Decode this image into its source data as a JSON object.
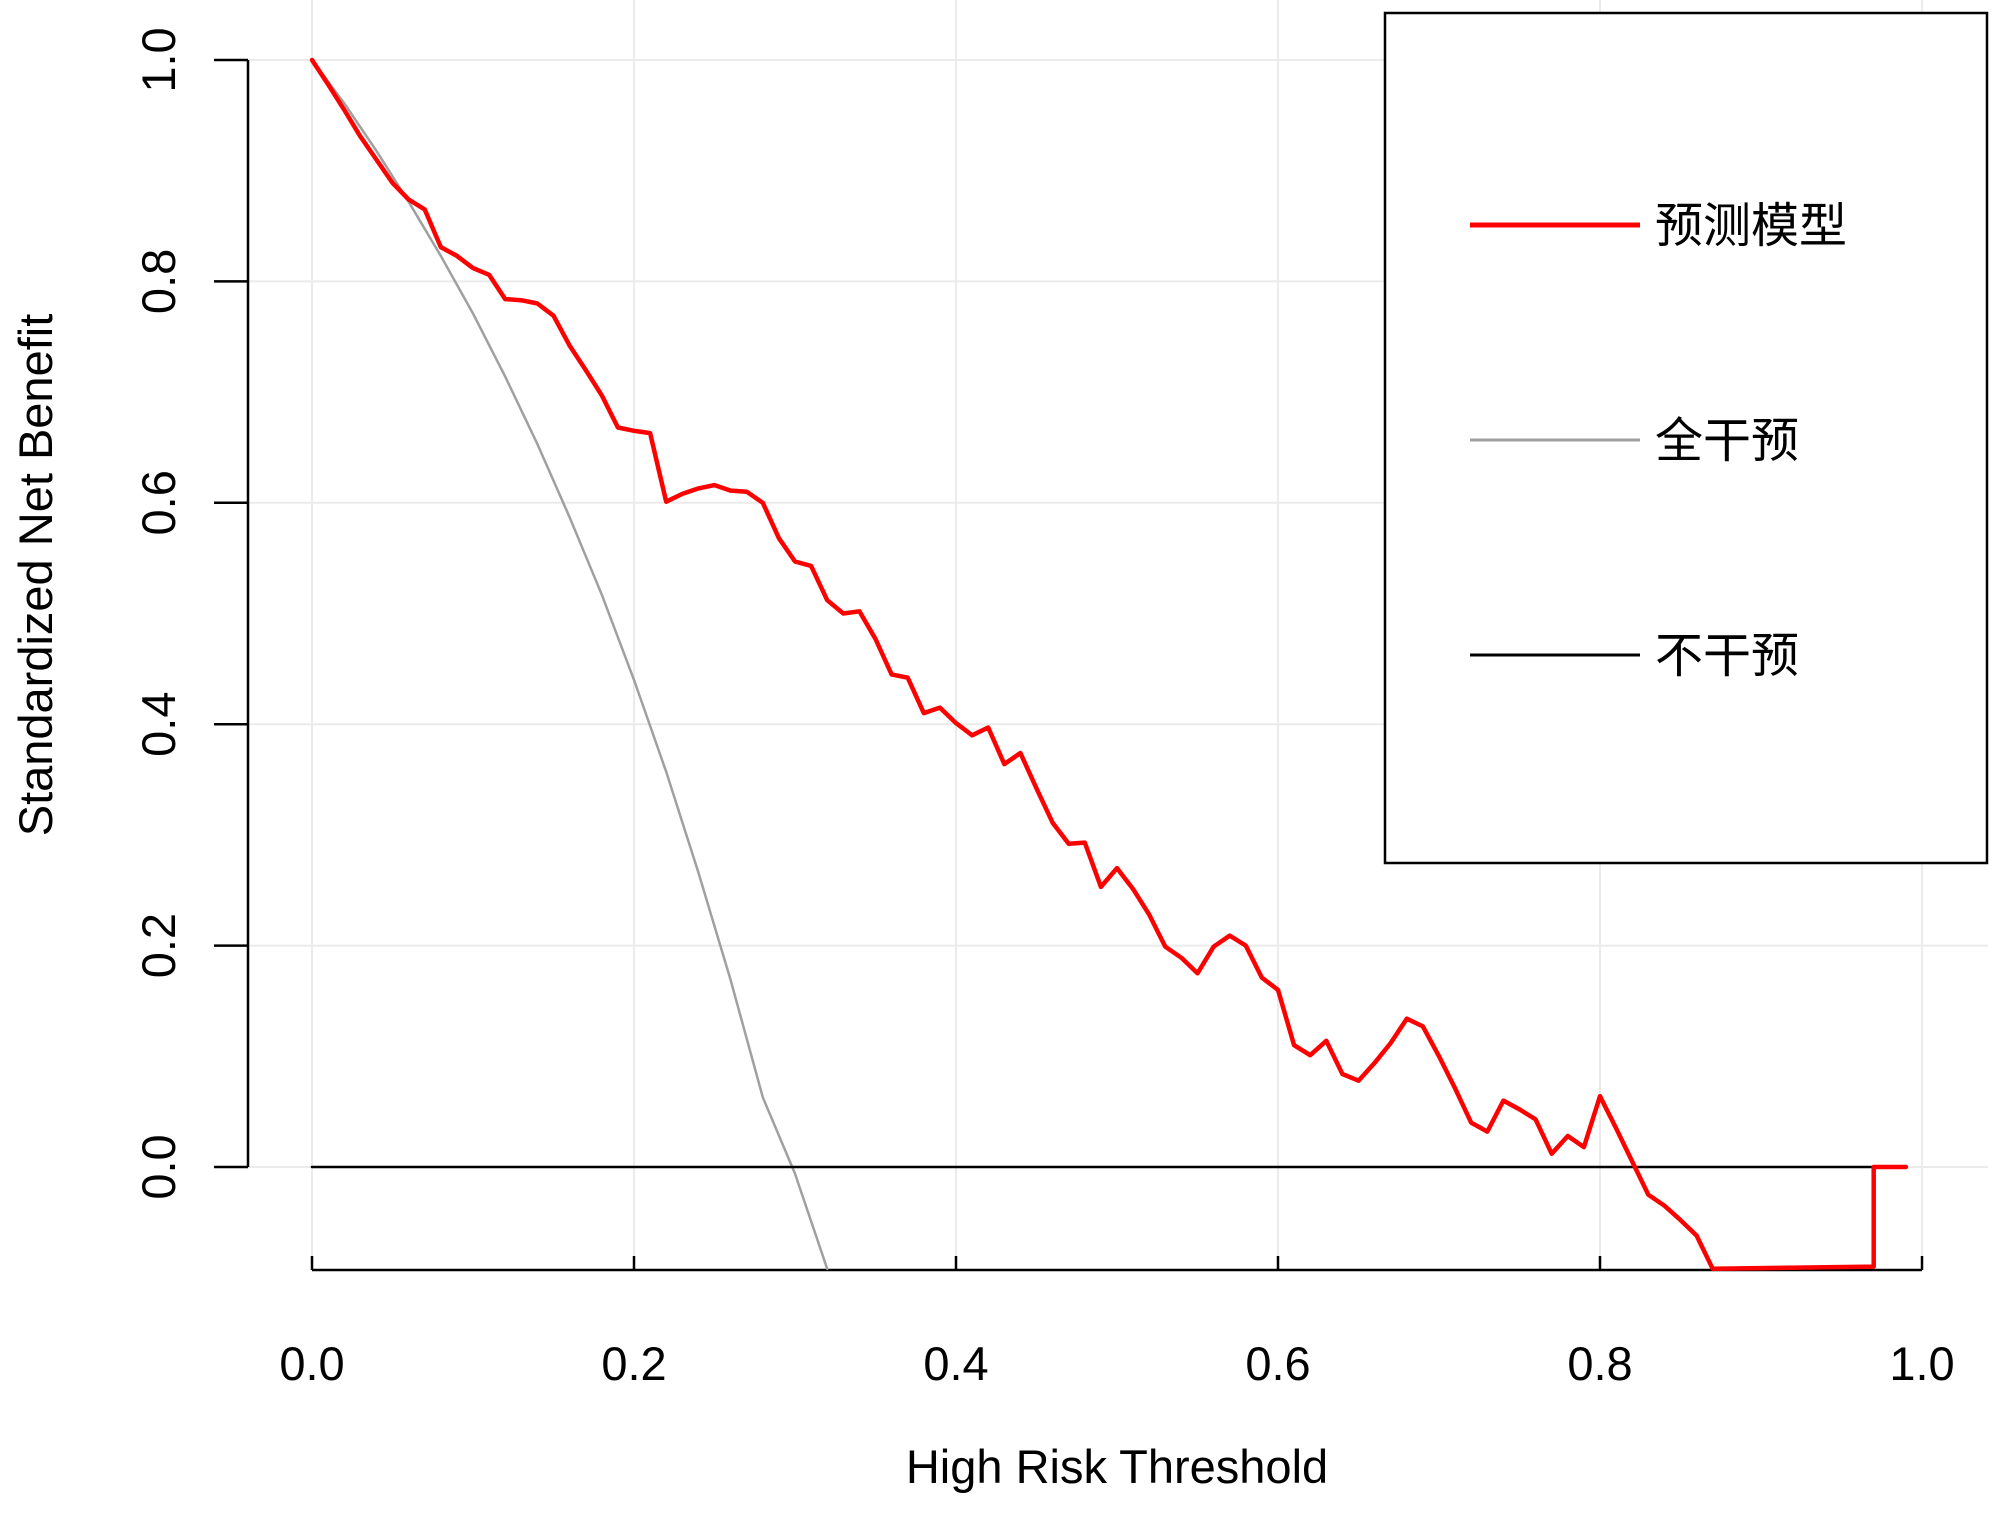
{
  "chart_data": {
    "type": "line",
    "xlabel": "High Risk Threshold",
    "ylabel": "Standardized Net Benefit",
    "xlim": [
      0.0,
      1.0
    ],
    "ylim": [
      -0.09,
      1.0
    ],
    "x_ticks": [
      "0.0",
      "0.2",
      "0.4",
      "0.6",
      "0.8",
      "1.0"
    ],
    "y_ticks": [
      "0.0",
      "0.2",
      "0.4",
      "0.6",
      "0.8",
      "1.0"
    ],
    "grid": true,
    "legend_position": "top-right",
    "series": [
      {
        "name": "预测模型",
        "color": "#ff0000",
        "points": [
          [
            0.0,
            1.0
          ],
          [
            0.01,
            0.978
          ],
          [
            0.02,
            0.955
          ],
          [
            0.03,
            0.931
          ],
          [
            0.04,
            0.91
          ],
          [
            0.05,
            0.889
          ],
          [
            0.06,
            0.874
          ],
          [
            0.07,
            0.865
          ],
          [
            0.08,
            0.831
          ],
          [
            0.09,
            0.823
          ],
          [
            0.1,
            0.812
          ],
          [
            0.11,
            0.806
          ],
          [
            0.12,
            0.784
          ],
          [
            0.13,
            0.783
          ],
          [
            0.14,
            0.78
          ],
          [
            0.15,
            0.769
          ],
          [
            0.16,
            0.742
          ],
          [
            0.17,
            0.72
          ],
          [
            0.18,
            0.697
          ],
          [
            0.19,
            0.668
          ],
          [
            0.2,
            0.665
          ],
          [
            0.21,
            0.663
          ],
          [
            0.22,
            0.601
          ],
          [
            0.23,
            0.608
          ],
          [
            0.24,
            0.613
          ],
          [
            0.25,
            0.616
          ],
          [
            0.26,
            0.611
          ],
          [
            0.27,
            0.61
          ],
          [
            0.28,
            0.6
          ],
          [
            0.29,
            0.568
          ],
          [
            0.3,
            0.547
          ],
          [
            0.31,
            0.543
          ],
          [
            0.32,
            0.512
          ],
          [
            0.33,
            0.5
          ],
          [
            0.34,
            0.502
          ],
          [
            0.35,
            0.477
          ],
          [
            0.36,
            0.445
          ],
          [
            0.37,
            0.442
          ],
          [
            0.38,
            0.41
          ],
          [
            0.39,
            0.415
          ],
          [
            0.4,
            0.401
          ],
          [
            0.41,
            0.39
          ],
          [
            0.42,
            0.397
          ],
          [
            0.43,
            0.364
          ],
          [
            0.44,
            0.374
          ],
          [
            0.45,
            0.342
          ],
          [
            0.46,
            0.311
          ],
          [
            0.47,
            0.292
          ],
          [
            0.48,
            0.293
          ],
          [
            0.49,
            0.253
          ],
          [
            0.5,
            0.27
          ],
          [
            0.51,
            0.251
          ],
          [
            0.52,
            0.228
          ],
          [
            0.53,
            0.199
          ],
          [
            0.54,
            0.189
          ],
          [
            0.55,
            0.175
          ],
          [
            0.56,
            0.199
          ],
          [
            0.57,
            0.209
          ],
          [
            0.58,
            0.2
          ],
          [
            0.59,
            0.171
          ],
          [
            0.6,
            0.16
          ],
          [
            0.61,
            0.11
          ],
          [
            0.62,
            0.101
          ],
          [
            0.63,
            0.114
          ],
          [
            0.64,
            0.084
          ],
          [
            0.65,
            0.078
          ],
          [
            0.66,
            0.094
          ],
          [
            0.67,
            0.112
          ],
          [
            0.68,
            0.134
          ],
          [
            0.69,
            0.127
          ],
          [
            0.7,
            0.1
          ],
          [
            0.71,
            0.071
          ],
          [
            0.72,
            0.04
          ],
          [
            0.73,
            0.032
          ],
          [
            0.74,
            0.06
          ],
          [
            0.75,
            0.052
          ],
          [
            0.76,
            0.043
          ],
          [
            0.77,
            0.012
          ],
          [
            0.78,
            0.028
          ],
          [
            0.79,
            0.018
          ],
          [
            0.8,
            0.064
          ],
          [
            0.81,
            0.035
          ],
          [
            0.82,
            0.005
          ],
          [
            0.83,
            -0.025
          ],
          [
            0.84,
            -0.035
          ],
          [
            0.85,
            -0.048
          ],
          [
            0.86,
            -0.062
          ],
          [
            0.87,
            -0.092
          ],
          [
            0.97,
            -0.09
          ],
          [
            0.97,
            0.0
          ],
          [
            0.99,
            0.0
          ]
        ]
      },
      {
        "name": "全干预",
        "color": "#a0a0a0",
        "points": [
          [
            0.0,
            1.0
          ],
          [
            0.02,
            0.961
          ],
          [
            0.04,
            0.918
          ],
          [
            0.06,
            0.872
          ],
          [
            0.08,
            0.823
          ],
          [
            0.1,
            0.771
          ],
          [
            0.12,
            0.714
          ],
          [
            0.14,
            0.653
          ],
          [
            0.16,
            0.587
          ],
          [
            0.18,
            0.517
          ],
          [
            0.2,
            0.44
          ],
          [
            0.22,
            0.357
          ],
          [
            0.24,
            0.266
          ],
          [
            0.26,
            0.169
          ],
          [
            0.28,
            0.063
          ],
          [
            0.3,
            -0.006
          ],
          [
            0.32,
            -0.092
          ]
        ]
      },
      {
        "name": "不干预",
        "color": "#000000",
        "points": [
          [
            0.0,
            0.0
          ],
          [
            0.99,
            0.0
          ]
        ]
      }
    ]
  }
}
